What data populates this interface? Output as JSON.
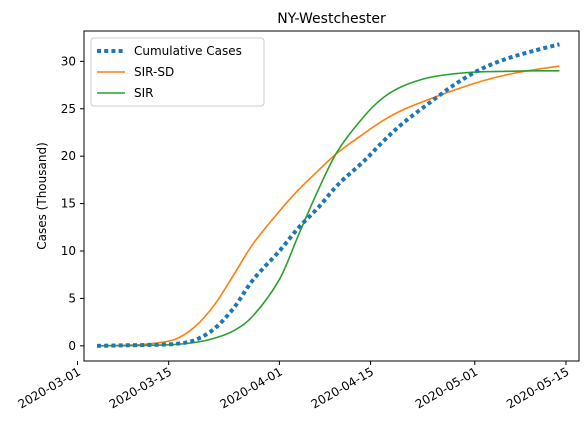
{
  "chart_data": {
    "type": "line",
    "title": "NY-Westchester",
    "xlabel": "",
    "ylabel": "Cases (Thousand)",
    "ylim": [
      -1.6,
      33.2
    ],
    "xlim": [
      "2020-03-02",
      "2020-05-17"
    ],
    "x_ticks": [
      "2020-03-01",
      "2020-03-15",
      "2020-04-01",
      "2020-04-15",
      "2020-05-01",
      "2020-05-15"
    ],
    "y_ticks": [
      0,
      5,
      10,
      15,
      20,
      25,
      30
    ],
    "grid": false,
    "legend_position": "upper-left",
    "series": [
      {
        "name": "Cumulative Cases",
        "color": "#1f77b4",
        "style": "dotted",
        "points": [
          [
            "2020-03-04",
            0.0
          ],
          [
            "2020-03-08",
            0.05
          ],
          [
            "2020-03-12",
            0.1
          ],
          [
            "2020-03-16",
            0.2
          ],
          [
            "2020-03-19",
            0.6
          ],
          [
            "2020-03-22",
            1.8
          ],
          [
            "2020-03-25",
            4.0
          ],
          [
            "2020-03-28",
            7.0
          ],
          [
            "2020-04-01",
            10.0
          ],
          [
            "2020-04-04",
            12.5
          ],
          [
            "2020-04-07",
            14.6
          ],
          [
            "2020-04-10",
            17.0
          ],
          [
            "2020-04-14",
            19.5
          ],
          [
            "2020-04-17",
            21.6
          ],
          [
            "2020-04-20",
            23.5
          ],
          [
            "2020-04-24",
            25.6
          ],
          [
            "2020-04-28",
            27.6
          ],
          [
            "2020-05-02",
            29.2
          ],
          [
            "2020-05-06",
            30.3
          ],
          [
            "2020-05-10",
            31.1
          ],
          [
            "2020-05-14",
            31.8
          ]
        ]
      },
      {
        "name": "SIR-SD",
        "color": "#ff7f0e",
        "style": "solid",
        "points": [
          [
            "2020-03-04",
            0.0
          ],
          [
            "2020-03-08",
            0.05
          ],
          [
            "2020-03-12",
            0.2
          ],
          [
            "2020-03-16",
            0.7
          ],
          [
            "2020-03-19",
            2.0
          ],
          [
            "2020-03-22",
            4.3
          ],
          [
            "2020-03-25",
            7.5
          ],
          [
            "2020-03-28",
            10.8
          ],
          [
            "2020-04-01",
            14.2
          ],
          [
            "2020-04-04",
            16.5
          ],
          [
            "2020-04-07",
            18.5
          ],
          [
            "2020-04-10",
            20.4
          ],
          [
            "2020-04-14",
            22.4
          ],
          [
            "2020-04-17",
            23.8
          ],
          [
            "2020-04-20",
            24.9
          ],
          [
            "2020-04-24",
            26.0
          ],
          [
            "2020-04-28",
            27.0
          ],
          [
            "2020-05-02",
            27.9
          ],
          [
            "2020-05-06",
            28.6
          ],
          [
            "2020-05-10",
            29.1
          ],
          [
            "2020-05-14",
            29.5
          ]
        ]
      },
      {
        "name": "SIR",
        "color": "#2ca02c",
        "style": "solid",
        "points": [
          [
            "2020-03-04",
            0.0
          ],
          [
            "2020-03-08",
            0.02
          ],
          [
            "2020-03-12",
            0.05
          ],
          [
            "2020-03-16",
            0.15
          ],
          [
            "2020-03-19",
            0.35
          ],
          [
            "2020-03-22",
            0.8
          ],
          [
            "2020-03-25",
            1.6
          ],
          [
            "2020-03-28",
            3.2
          ],
          [
            "2020-04-01",
            7.0
          ],
          [
            "2020-04-04",
            11.8
          ],
          [
            "2020-04-07",
            16.5
          ],
          [
            "2020-04-10",
            20.6
          ],
          [
            "2020-04-14",
            24.2
          ],
          [
            "2020-04-17",
            26.2
          ],
          [
            "2020-04-20",
            27.4
          ],
          [
            "2020-04-24",
            28.3
          ],
          [
            "2020-04-28",
            28.7
          ],
          [
            "2020-05-02",
            28.9
          ],
          [
            "2020-05-06",
            28.95
          ],
          [
            "2020-05-10",
            29.0
          ],
          [
            "2020-05-14",
            29.0
          ]
        ]
      }
    ]
  }
}
